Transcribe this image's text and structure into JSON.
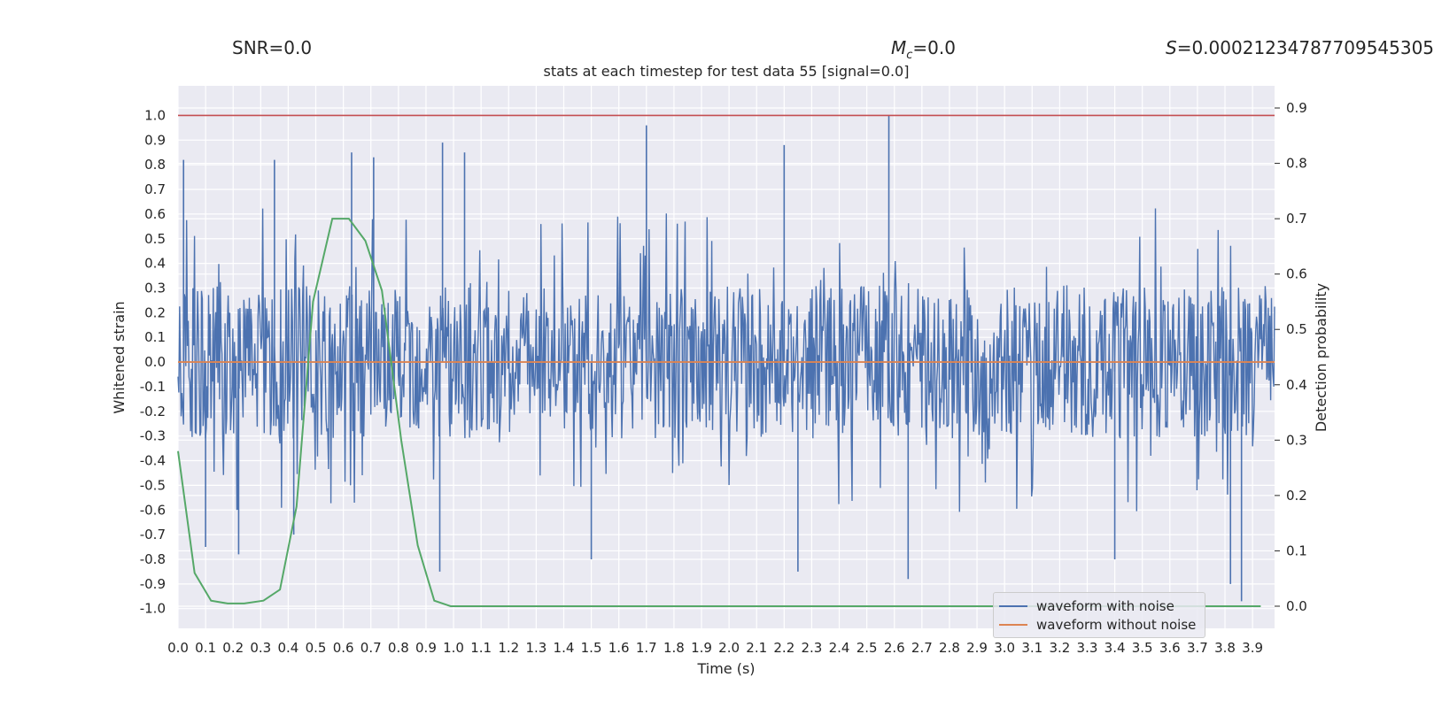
{
  "header": {
    "snr": "SNR=0.0",
    "mc_symbol": "M",
    "mc_sub": "c",
    "mc_value": "=0.0",
    "s_symbol": "S",
    "s_value": "=0.00021234787709545305"
  },
  "chart_data": {
    "type": "line",
    "title": "stats at each timestep for test data 55 [signal=0.0]",
    "xlabel": "Time (s)",
    "ylabel": "Whitened strain",
    "y2label": "Detection probability",
    "xlim": [
      0.0,
      3.98
    ],
    "ylim": [
      -1.08,
      1.12
    ],
    "y2lim": [
      -0.04,
      0.94
    ],
    "xticks": [
      "0.0",
      "0.1",
      "0.2",
      "0.3",
      "0.4",
      "0.5",
      "0.6",
      "0.7",
      "0.8",
      "0.9",
      "1.0",
      "1.1",
      "1.2",
      "1.3",
      "1.4",
      "1.5",
      "1.6",
      "1.7",
      "1.8",
      "1.9",
      "2.0",
      "2.1",
      "2.2",
      "2.3",
      "2.4",
      "2.5",
      "2.6",
      "2.7",
      "2.8",
      "2.9",
      "3.0",
      "3.1",
      "3.2",
      "3.3",
      "3.4",
      "3.5",
      "3.6",
      "3.7",
      "3.8",
      "3.9"
    ],
    "yticks": [
      "1.0",
      "0.9",
      "0.8",
      "0.7",
      "0.6",
      "0.5",
      "0.4",
      "0.3",
      "0.2",
      "0.1",
      "0.0",
      "-0.1",
      "-0.2",
      "-0.3",
      "-0.4",
      "-0.5",
      "-0.6",
      "-0.7",
      "-0.8",
      "-0.9",
      "-1.0"
    ],
    "y2ticks": [
      "0.9",
      "0.8",
      "0.7",
      "0.6",
      "0.5",
      "0.4",
      "0.3",
      "0.2",
      "0.1",
      "0.0"
    ],
    "series": [
      {
        "name": "waveform with noise",
        "color": "#4c72b0",
        "axis": "left",
        "description": "dense whitened noise trace, roughly +/-0.35 with spikes",
        "spikes": [
          [
            0.02,
            0.82
          ],
          [
            0.35,
            0.82
          ],
          [
            0.63,
            0.85
          ],
          [
            0.71,
            0.83
          ],
          [
            0.96,
            0.89
          ],
          [
            1.04,
            0.85
          ],
          [
            1.7,
            0.96
          ],
          [
            2.2,
            0.88
          ],
          [
            2.58,
            1.0
          ],
          [
            0.1,
            -0.75
          ],
          [
            0.22,
            -0.78
          ],
          [
            0.42,
            -0.7
          ],
          [
            0.95,
            -0.85
          ],
          [
            1.5,
            -0.8
          ],
          [
            2.25,
            -0.85
          ],
          [
            2.65,
            -0.88
          ],
          [
            3.4,
            -0.8
          ],
          [
            3.82,
            -0.9
          ],
          [
            3.86,
            -0.97
          ]
        ]
      },
      {
        "name": "waveform without noise",
        "color": "#dd8452",
        "axis": "left",
        "x": [
          0.0,
          3.98
        ],
        "y": [
          0.0,
          0.0
        ]
      },
      {
        "name": "threshold",
        "color": "#c44e52",
        "axis": "left",
        "x": [
          0.0,
          3.98
        ],
        "y": [
          1.0,
          1.0
        ]
      },
      {
        "name": "detection probability",
        "color": "#55a868",
        "axis": "right",
        "x": [
          0.0,
          0.06,
          0.12,
          0.18,
          0.24,
          0.31,
          0.37,
          0.43,
          0.49,
          0.56,
          0.62,
          0.68,
          0.74,
          0.81,
          0.87,
          0.93,
          0.99,
          1.05,
          3.93
        ],
        "y": [
          0.28,
          0.06,
          0.01,
          0.005,
          0.005,
          0.01,
          0.03,
          0.18,
          0.55,
          0.7,
          0.7,
          0.66,
          0.57,
          0.3,
          0.11,
          0.01,
          0.0,
          0.0,
          0.0
        ]
      }
    ],
    "legend": [
      "waveform with noise",
      "waveform without noise"
    ],
    "legend_position": "lower-right"
  }
}
